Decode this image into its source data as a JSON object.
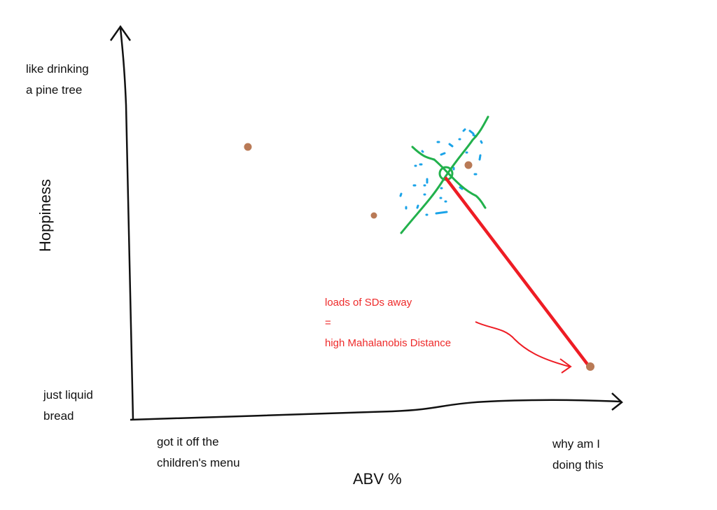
{
  "y_axis": {
    "label": "Hoppiness",
    "top_label_line1": "like drinking",
    "top_label_line2": "a pine tree",
    "bottom_label_line1": "just liquid",
    "bottom_label_line2": "bread"
  },
  "x_axis": {
    "label": "ABV %",
    "left_label_line1": "got it off the",
    "left_label_line2": "children's menu",
    "right_label_line1": "why am I",
    "right_label_line2": "doing this"
  },
  "annotation": {
    "line1": "loads of SDs away",
    "line2": "=",
    "line3": "high Mahalanobis Distance"
  },
  "colors": {
    "points": "#b97a56",
    "cluster": "#1aa3e8",
    "axes_cross": "#22b14c",
    "distance": "#ee1c24"
  }
}
